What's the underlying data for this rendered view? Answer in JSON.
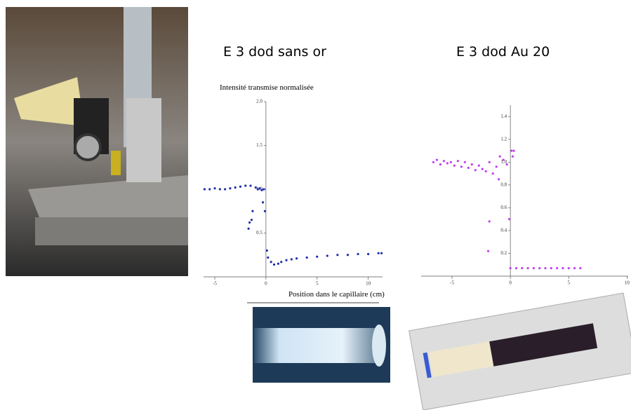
{
  "chart_data": [
    {
      "type": "scatter",
      "title": "E 3 dod sans or",
      "ylabel": "Intensité transmise normalisée",
      "xlabel": "Position dans le capillaire (cm)",
      "color": "#1f2fa8",
      "x": [
        -6,
        -5.5,
        -5,
        -4.5,
        -4,
        -3.5,
        -3,
        -2.5,
        -2,
        -1.5,
        -1.6,
        -1.7,
        -1.4,
        -1.3,
        -1.0,
        -0.8,
        -0.6,
        -0.4,
        -0.3,
        -0.2,
        -0.1,
        0.1,
        0.2,
        0.5,
        0.8,
        1.2,
        1.5,
        2,
        2.5,
        3,
        4,
        5,
        6,
        7,
        8,
        9,
        10,
        11,
        11.3
      ],
      "y": [
        1.0,
        1.0,
        1.01,
        1.0,
        1.0,
        1.01,
        1.02,
        1.03,
        1.04,
        1.04,
        0.62,
        0.55,
        0.65,
        0.75,
        1.02,
        1.0,
        1.01,
        0.99,
        0.85,
        1.0,
        0.75,
        0.3,
        0.22,
        0.17,
        0.14,
        0.15,
        0.17,
        0.19,
        0.2,
        0.21,
        0.22,
        0.23,
        0.24,
        0.25,
        0.25,
        0.26,
        0.26,
        0.27,
        0.27
      ],
      "xlim": [
        -6.1,
        11.4
      ],
      "ylim": [
        0,
        2.0
      ],
      "xticks": [
        -5,
        0,
        5,
        10
      ],
      "yticks": [
        0.5,
        {
          "value": 1.0,
          "label": "1.0"
        },
        1.5,
        {
          "value": 2.0,
          "label": "2.0"
        }
      ]
    },
    {
      "type": "scatter",
      "title": "E 3 dod Au 20",
      "color": "#c040f0",
      "x": [
        -6.6,
        -6.3,
        -6,
        -5.7,
        -5.4,
        -5.1,
        -4.8,
        -4.5,
        -4.2,
        -3.9,
        -3.6,
        -3.3,
        -3,
        -2.7,
        -2.4,
        -2.1,
        -1.8,
        -1.5,
        -1.2,
        -0.9,
        -0.6,
        -0.3,
        -1.9,
        -1.8,
        -1.0,
        -0.1,
        0.1,
        0.2,
        0.3,
        0,
        0.5,
        1,
        1.5,
        2,
        2.5,
        3,
        3.5,
        4,
        4.5,
        5,
        5.5,
        6
      ],
      "y": [
        1.0,
        1.02,
        0.98,
        1.01,
        0.99,
        1.0,
        0.97,
        1.01,
        0.96,
        1.0,
        0.95,
        0.98,
        0.93,
        0.97,
        0.94,
        0.92,
        1.0,
        0.9,
        0.96,
        1.05,
        1.02,
        0.98,
        0.22,
        0.48,
        0.85,
        0.5,
        1.1,
        1.05,
        1.1,
        0.07,
        0.07,
        0.07,
        0.07,
        0.07,
        0.07,
        0.07,
        0.07,
        0.07,
        0.07,
        0.07,
        0.07,
        0.07
      ],
      "xlim": [
        -7.65,
        10.1
      ],
      "ylim": [
        0,
        1.5
      ],
      "xticks": [
        -5,
        0,
        5,
        10
      ],
      "yticks": [
        0.2,
        0.4,
        0.6,
        0.8,
        {
          "value": 1.0,
          "label": "1.0"
        },
        1.2,
        1.4
      ]
    }
  ]
}
